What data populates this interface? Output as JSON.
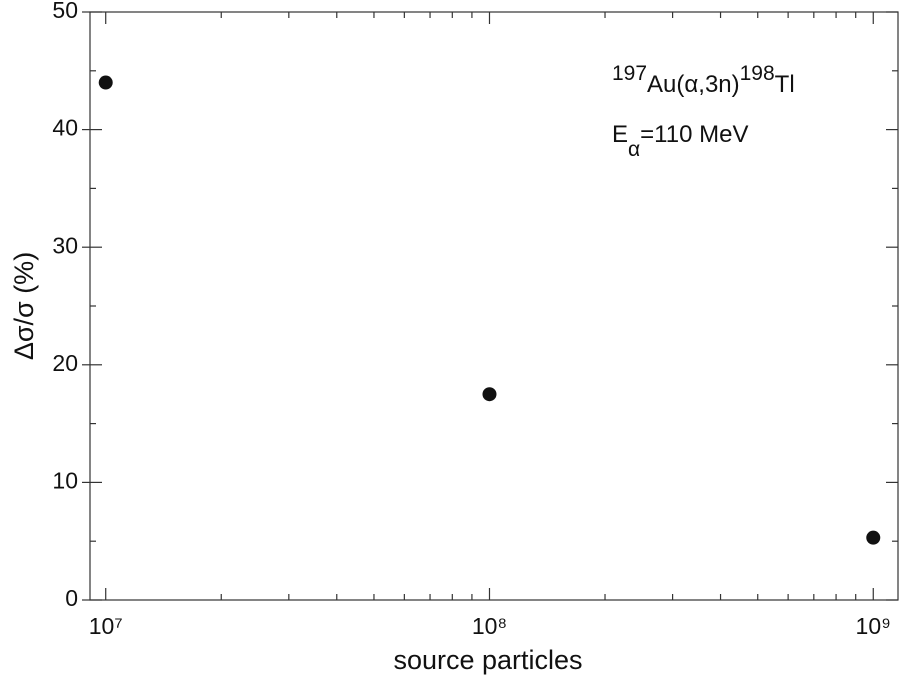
{
  "chart_data": {
    "type": "scatter",
    "x_label": "source particles",
    "y_label": "Δσ/σ (%)",
    "x_scale": "log",
    "x": [
      10000000,
      100000000,
      1000000000
    ],
    "series": [
      {
        "color": "#111111",
        "values": [
          44,
          17.5,
          5.3
        ]
      }
    ],
    "xlim": [
      9100000,
      1160000000
    ],
    "ylim": [
      0,
      50
    ],
    "xticks": [
      {
        "value": 10000000,
        "label": "10⁷"
      },
      {
        "value": 100000000,
        "label": "10⁸"
      },
      {
        "value": 1000000000,
        "label": "10⁹"
      }
    ],
    "xminorticks": [
      20000000,
      30000000,
      40000000,
      50000000,
      60000000,
      70000000,
      80000000,
      90000000,
      200000000,
      300000000,
      400000000,
      500000000,
      600000000,
      700000000,
      800000000,
      900000000
    ],
    "yticks": [
      0,
      10,
      20,
      30,
      40,
      50
    ],
    "yminorticks": [
      5,
      15,
      25,
      35,
      45
    ],
    "annotations": [
      [
        {
          "text": "197",
          "style": "sup"
        },
        {
          "text": "Au(α,3n)",
          "style": "normal"
        },
        {
          "text": "198",
          "style": "sup"
        },
        {
          "text": "Tl",
          "style": "normal"
        }
      ],
      [
        {
          "text": "E",
          "style": "normal"
        },
        {
          "text": "α",
          "style": "sub"
        },
        {
          "text": "=110 MeV",
          "style": "normal"
        }
      ]
    ]
  }
}
